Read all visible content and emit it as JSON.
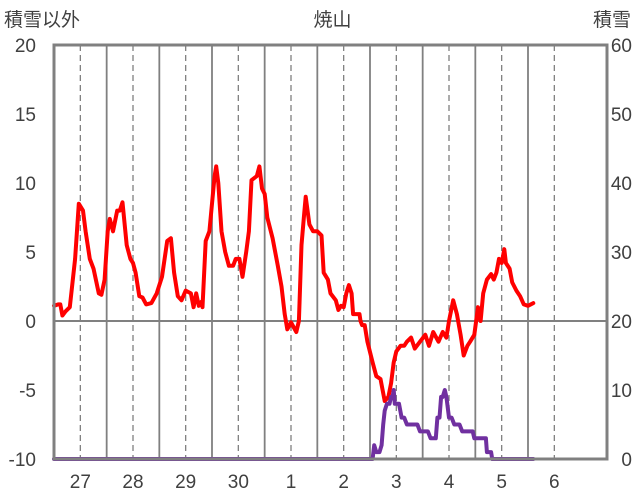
{
  "chart_data": {
    "type": "line",
    "title": "焼山",
    "ylabel_left": "積雪以外",
    "ylabel_right": "積雪",
    "ylim_left": [
      -10,
      20
    ],
    "ylim_right": [
      0,
      60
    ],
    "yticks_left": [
      "20",
      "15",
      "10",
      "5",
      "0",
      "-5",
      "-10"
    ],
    "yticks_right": [
      "60",
      "50",
      "40",
      "30",
      "20",
      "10",
      "0"
    ],
    "categories": [
      "27",
      "28",
      "29",
      "30",
      "1",
      "2",
      "3",
      "4",
      "5",
      "6"
    ],
    "x_range": [
      26.5,
      37.0
    ],
    "grid": "dashed vertical at day labels, solid vertical between days, solid horizontal at 0",
    "series": [
      {
        "axis": "left",
        "color": "#ff0000",
        "points": [
          [
            26.5,
            1.1
          ],
          [
            26.58,
            1.2
          ],
          [
            26.62,
            1.2
          ],
          [
            26.66,
            0.4
          ],
          [
            26.72,
            0.7
          ],
          [
            26.8,
            1.0
          ],
          [
            26.9,
            4.5
          ],
          [
            26.97,
            8.5
          ],
          [
            27.05,
            8.0
          ],
          [
            27.1,
            6.5
          ],
          [
            27.18,
            4.5
          ],
          [
            27.25,
            3.8
          ],
          [
            27.35,
            2.0
          ],
          [
            27.4,
            1.9
          ],
          [
            27.46,
            3.0
          ],
          [
            27.52,
            6.5
          ],
          [
            27.56,
            7.4
          ],
          [
            27.62,
            6.5
          ],
          [
            27.7,
            8.0
          ],
          [
            27.75,
            8.0
          ],
          [
            27.8,
            8.6
          ],
          [
            27.88,
            5.5
          ],
          [
            27.95,
            4.5
          ],
          [
            28.0,
            4.2
          ],
          [
            28.05,
            3.5
          ],
          [
            28.12,
            1.8
          ],
          [
            28.18,
            1.7
          ],
          [
            28.25,
            1.2
          ],
          [
            28.35,
            1.3
          ],
          [
            28.45,
            2.0
          ],
          [
            28.55,
            3.2
          ],
          [
            28.65,
            5.8
          ],
          [
            28.72,
            6.0
          ],
          [
            28.78,
            3.5
          ],
          [
            28.85,
            1.8
          ],
          [
            28.92,
            1.5
          ],
          [
            29.0,
            2.2
          ],
          [
            29.1,
            2.0
          ],
          [
            29.15,
            1.0
          ],
          [
            29.2,
            2.0
          ],
          [
            29.25,
            1.1
          ],
          [
            29.3,
            1.4
          ],
          [
            29.32,
            1.0
          ],
          [
            29.38,
            5.8
          ],
          [
            29.45,
            6.5
          ],
          [
            29.55,
            10.5
          ],
          [
            29.58,
            11.2
          ],
          [
            29.62,
            10.0
          ],
          [
            29.68,
            6.5
          ],
          [
            29.75,
            5.0
          ],
          [
            29.82,
            4.0
          ],
          [
            29.9,
            4.0
          ],
          [
            29.95,
            4.5
          ],
          [
            30.02,
            4.5
          ],
          [
            30.08,
            3.2
          ],
          [
            30.15,
            5.0
          ],
          [
            30.2,
            6.5
          ],
          [
            30.25,
            10.2
          ],
          [
            30.35,
            10.5
          ],
          [
            30.4,
            11.2
          ],
          [
            30.45,
            9.6
          ],
          [
            30.5,
            9.2
          ],
          [
            30.55,
            7.5
          ],
          [
            30.65,
            6.0
          ],
          [
            30.75,
            4.0
          ],
          [
            30.82,
            2.5
          ],
          [
            30.88,
            0.5
          ],
          [
            30.93,
            -0.6
          ],
          [
            31.0,
            -0.1
          ],
          [
            31.1,
            -0.8
          ],
          [
            31.15,
            0.0
          ],
          [
            31.2,
            5.5
          ],
          [
            31.25,
            7.8
          ],
          [
            31.28,
            9.0
          ],
          [
            31.35,
            7.0
          ],
          [
            31.42,
            6.5
          ],
          [
            31.5,
            6.5
          ],
          [
            31.58,
            6.2
          ],
          [
            31.62,
            3.5
          ],
          [
            31.7,
            3.0
          ],
          [
            31.75,
            2.0
          ],
          [
            31.85,
            1.5
          ],
          [
            31.9,
            0.8
          ],
          [
            31.95,
            1.1
          ],
          [
            32.0,
            1.0
          ],
          [
            32.05,
            2.0
          ],
          [
            32.1,
            2.6
          ],
          [
            32.15,
            2.0
          ],
          [
            32.18,
            0.5
          ],
          [
            32.3,
            0.5
          ],
          [
            32.32,
            0.0
          ],
          [
            32.35,
            -0.3
          ],
          [
            32.4,
            -0.3
          ],
          [
            32.45,
            -1.5
          ],
          [
            32.55,
            -3.0
          ],
          [
            32.62,
            -4.0
          ],
          [
            32.7,
            -4.2
          ],
          [
            32.78,
            -5.8
          ],
          [
            32.85,
            -5.5
          ],
          [
            32.9,
            -4.5
          ],
          [
            32.95,
            -3.0
          ],
          [
            33.0,
            -2.2
          ],
          [
            33.08,
            -1.8
          ],
          [
            33.15,
            -1.8
          ],
          [
            33.2,
            -1.5
          ],
          [
            33.28,
            -1.2
          ],
          [
            33.35,
            -2.0
          ],
          [
            33.45,
            -1.5
          ],
          [
            33.55,
            -1.0
          ],
          [
            33.62,
            -1.8
          ],
          [
            33.7,
            -0.8
          ],
          [
            33.8,
            -1.5
          ],
          [
            33.88,
            -0.8
          ],
          [
            33.95,
            -1.2
          ],
          [
            34.0,
            0.0
          ],
          [
            34.08,
            1.5
          ],
          [
            34.15,
            0.5
          ],
          [
            34.22,
            -1.0
          ],
          [
            34.28,
            -2.5
          ],
          [
            34.35,
            -1.8
          ],
          [
            34.4,
            -1.5
          ],
          [
            34.48,
            -1.0
          ],
          [
            34.55,
            1.0
          ],
          [
            34.6,
            0.0
          ],
          [
            34.65,
            2.0
          ],
          [
            34.72,
            3.0
          ],
          [
            34.8,
            3.4
          ],
          [
            34.85,
            3.0
          ],
          [
            34.9,
            3.5
          ],
          [
            34.95,
            4.5
          ],
          [
            35.0,
            4.2
          ],
          [
            35.05,
            5.2
          ],
          [
            35.08,
            4.2
          ],
          [
            35.15,
            3.8
          ],
          [
            35.2,
            2.8
          ],
          [
            35.28,
            2.2
          ],
          [
            35.35,
            1.8
          ],
          [
            35.42,
            1.2
          ],
          [
            35.5,
            1.1
          ],
          [
            35.6,
            1.3
          ]
        ]
      },
      {
        "axis": "right",
        "color": "#7030a0",
        "points": [
          [
            26.5,
            0
          ],
          [
            32.55,
            0
          ],
          [
            32.58,
            2
          ],
          [
            32.62,
            1
          ],
          [
            32.65,
            1
          ],
          [
            32.68,
            1
          ],
          [
            32.72,
            2
          ],
          [
            32.75,
            5
          ],
          [
            32.78,
            7
          ],
          [
            32.82,
            8
          ],
          [
            32.87,
            8
          ],
          [
            32.9,
            9
          ],
          [
            32.93,
            9
          ],
          [
            32.95,
            10
          ],
          [
            32.97,
            8
          ],
          [
            33.0,
            8
          ],
          [
            33.05,
            8
          ],
          [
            33.1,
            6
          ],
          [
            33.15,
            6
          ],
          [
            33.2,
            5
          ],
          [
            33.4,
            5
          ],
          [
            33.45,
            4
          ],
          [
            33.6,
            4
          ],
          [
            33.65,
            3
          ],
          [
            33.75,
            3
          ],
          [
            33.78,
            6
          ],
          [
            33.82,
            6
          ],
          [
            33.85,
            9
          ],
          [
            33.88,
            9
          ],
          [
            33.92,
            10
          ],
          [
            33.95,
            9
          ],
          [
            34.0,
            6
          ],
          [
            34.05,
            6
          ],
          [
            34.1,
            5
          ],
          [
            34.2,
            5
          ],
          [
            34.25,
            4
          ],
          [
            34.45,
            4
          ],
          [
            34.48,
            3
          ],
          [
            34.7,
            3
          ],
          [
            34.72,
            1
          ],
          [
            34.8,
            1
          ],
          [
            34.82,
            0
          ],
          [
            35.6,
            0
          ]
        ]
      }
    ]
  }
}
